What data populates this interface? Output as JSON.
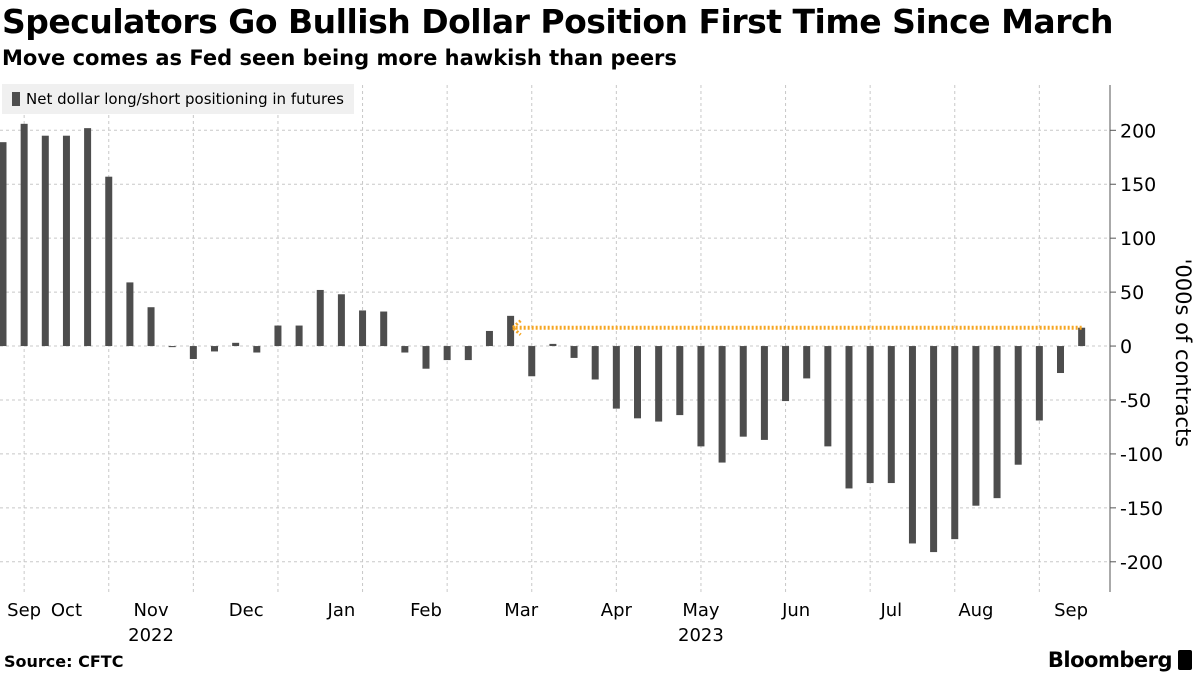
{
  "title": "Speculators Go Bullish Dollar Position First Time Since March",
  "subtitle": "Move comes as Fed seen being more hawkish than peers",
  "source": "Source: CFTC",
  "brand": "Bloomberg",
  "colors": {
    "bar": "#4d4d4d",
    "annotation_line": "#f5a623",
    "grid": "#c8c8c8"
  },
  "chart_data": {
    "type": "bar",
    "ylabel": "'000s of contracts",
    "ylim": [
      -228,
      242
    ],
    "yticks": [
      200,
      150,
      100,
      50,
      0,
      -50,
      -100,
      -150,
      -200
    ],
    "grid": true,
    "legend_placement": "top-left",
    "series": [
      {
        "name": "Net dollar long/short positioning in futures",
        "values": [
          189,
          206,
          195,
          195,
          202,
          157,
          59,
          36,
          -1,
          -12,
          -5,
          3,
          -6,
          19,
          19,
          52,
          48,
          33,
          32,
          -6,
          -21,
          -13,
          -13,
          14,
          28,
          -28,
          2,
          -11,
          -31,
          -58,
          -67,
          -70,
          -64,
          -93,
          -108,
          -84,
          -87,
          -51,
          -30,
          -93,
          -132,
          -127,
          -127,
          -183,
          -191,
          -179,
          -148,
          -141,
          -110,
          -69,
          -25,
          17
        ]
      }
    ],
    "month_labels": [
      {
        "label": "Sep",
        "bar": 1
      },
      {
        "label": "Oct",
        "bar": 3
      },
      {
        "label": "Nov",
        "bar": 7
      },
      {
        "label": "Dec",
        "bar": 11.5
      },
      {
        "label": "Jan",
        "bar": 16
      },
      {
        "label": "Feb",
        "bar": 20
      },
      {
        "label": "Mar",
        "bar": 24.5
      },
      {
        "label": "Apr",
        "bar": 29
      },
      {
        "label": "May",
        "bar": 33
      },
      {
        "label": "Jun",
        "bar": 37.5
      },
      {
        "label": "Jul",
        "bar": 42
      },
      {
        "label": "Aug",
        "bar": 46
      },
      {
        "label": "Sep",
        "bar": 50.5
      }
    ],
    "year_labels": [
      {
        "label": "2022",
        "bar": 7
      },
      {
        "label": "2023",
        "bar": 33
      }
    ],
    "annotation": {
      "type": "dotted-arrow",
      "from_bar": 51,
      "to_bar": 24,
      "value": 17
    }
  }
}
